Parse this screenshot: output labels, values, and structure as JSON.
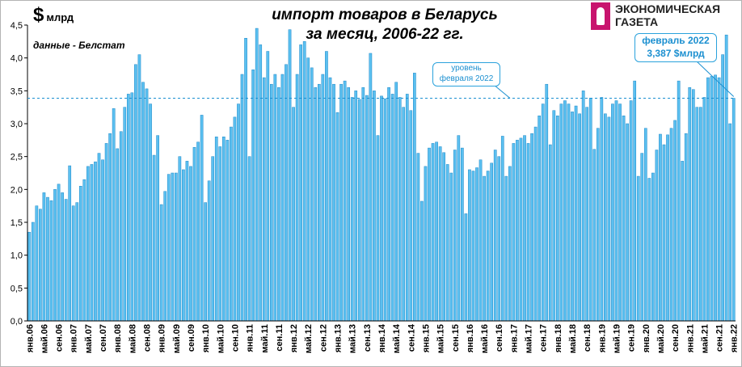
{
  "header": {
    "unit_symbol": "$",
    "unit_text": "млрд",
    "title_line1": "импорт товаров в Беларусь",
    "title_line2": "за месяц, 2006-22 гг.",
    "source": "данные - Белстат"
  },
  "logo": {
    "line1": "ЭКОНОМИЧЕСКАЯ",
    "line2": "ГАЗЕТА"
  },
  "callouts": {
    "feb2022_line1": "февраль 2022",
    "feb2022_line2": "3,387 $млрд",
    "level_line1": "уровень",
    "level_line2": "февраля 2022"
  },
  "colors": {
    "bar": "#5bc0f0",
    "bar_border": "#1e88c8",
    "reference_line": "#1a8fd0",
    "grid": "#000000"
  },
  "chart_data": {
    "type": "bar",
    "title": "импорт товаров в Беларусь за месяц, 2006-22 гг.",
    "ylabel": "$ млрд",
    "ylim": [
      0,
      4.5
    ],
    "yticks": [
      "0,0",
      "0,5",
      "1,0",
      "1,5",
      "2,0",
      "2,5",
      "3,0",
      "3,5",
      "4,0",
      "4,5"
    ],
    "grid": false,
    "reference_line": {
      "value": 3.387,
      "label": "уровень февраля 2022"
    },
    "xtick_labels": [
      "янв.06",
      "май.06",
      "сен.06",
      "янв.07",
      "май.07",
      "сен.07",
      "янв.08",
      "май.08",
      "сен.08",
      "янв.09",
      "май.09",
      "сен.09",
      "янв.10",
      "май.10",
      "сен.10",
      "янв.11",
      "май.11",
      "сен.11",
      "янв.12",
      "май.12",
      "сен.12",
      "янв.13",
      "май.13",
      "сен.13",
      "янв.14",
      "май.14",
      "сен.14",
      "янв.15",
      "май.15",
      "сен.15",
      "янв.16",
      "май.16",
      "сен.16",
      "янв.17",
      "май.17",
      "сен.17",
      "янв.18",
      "май.18",
      "сен.18",
      "янв.19",
      "май.19",
      "сен.19",
      "янв.20",
      "май.20",
      "сен.20",
      "янв.21",
      "май.21",
      "сен.21",
      "янв.22"
    ],
    "values": [
      1.35,
      1.5,
      1.75,
      1.7,
      1.95,
      1.88,
      1.83,
      2.0,
      2.08,
      1.95,
      1.85,
      2.36,
      1.75,
      1.8,
      2.05,
      2.15,
      2.35,
      2.38,
      2.42,
      2.55,
      2.45,
      2.7,
      2.85,
      3.23,
      2.62,
      2.88,
      3.25,
      3.45,
      3.47,
      3.9,
      4.05,
      3.63,
      3.53,
      3.3,
      2.52,
      2.82,
      1.77,
      1.97,
      2.23,
      2.25,
      2.25,
      2.5,
      2.3,
      2.43,
      2.35,
      2.64,
      2.72,
      3.13,
      1.8,
      2.13,
      2.5,
      2.8,
      2.65,
      2.8,
      2.75,
      2.95,
      3.1,
      3.3,
      3.75,
      4.3,
      2.5,
      3.82,
      4.45,
      4.2,
      3.7,
      4.1,
      3.6,
      3.75,
      3.55,
      3.75,
      3.9,
      4.43,
      3.25,
      3.75,
      4.2,
      4.25,
      4.0,
      3.85,
      3.55,
      3.6,
      3.75,
      4.1,
      3.7,
      3.6,
      3.17,
      3.6,
      3.65,
      3.55,
      3.4,
      3.5,
      3.37,
      3.55,
      3.43,
      4.07,
      3.5,
      2.82,
      3.42,
      3.38,
      3.55,
      3.45,
      3.63,
      3.4,
      3.25,
      3.45,
      3.2,
      3.77,
      2.55,
      1.82,
      2.35,
      2.63,
      2.7,
      2.72,
      2.65,
      2.56,
      2.38,
      2.25,
      2.6,
      2.82,
      2.63,
      1.63,
      2.3,
      2.28,
      2.33,
      2.45,
      2.2,
      2.28,
      2.4,
      2.6,
      2.5,
      2.81,
      2.2,
      2.35,
      2.7,
      2.75,
      2.78,
      2.82,
      2.7,
      2.85,
      2.95,
      3.12,
      3.3,
      3.6,
      2.68,
      3.2,
      3.12,
      3.3,
      3.35,
      3.3,
      3.18,
      3.27,
      3.15,
      3.5,
      3.25,
      3.39,
      2.61,
      2.93,
      3.4,
      3.15,
      3.1,
      3.3,
      3.35,
      3.3,
      3.12,
      3.0,
      3.35,
      3.65,
      2.2,
      2.55,
      2.93,
      2.17,
      2.25,
      2.6,
      2.84,
      2.68,
      2.83,
      2.93,
      3.05,
      3.65,
      2.43,
      2.85,
      3.55,
      3.52,
      3.25,
      3.25,
      3.4,
      3.7,
      3.72,
      3.74,
      3.7,
      4.05,
      4.35,
      3.0,
      3.387
    ]
  }
}
